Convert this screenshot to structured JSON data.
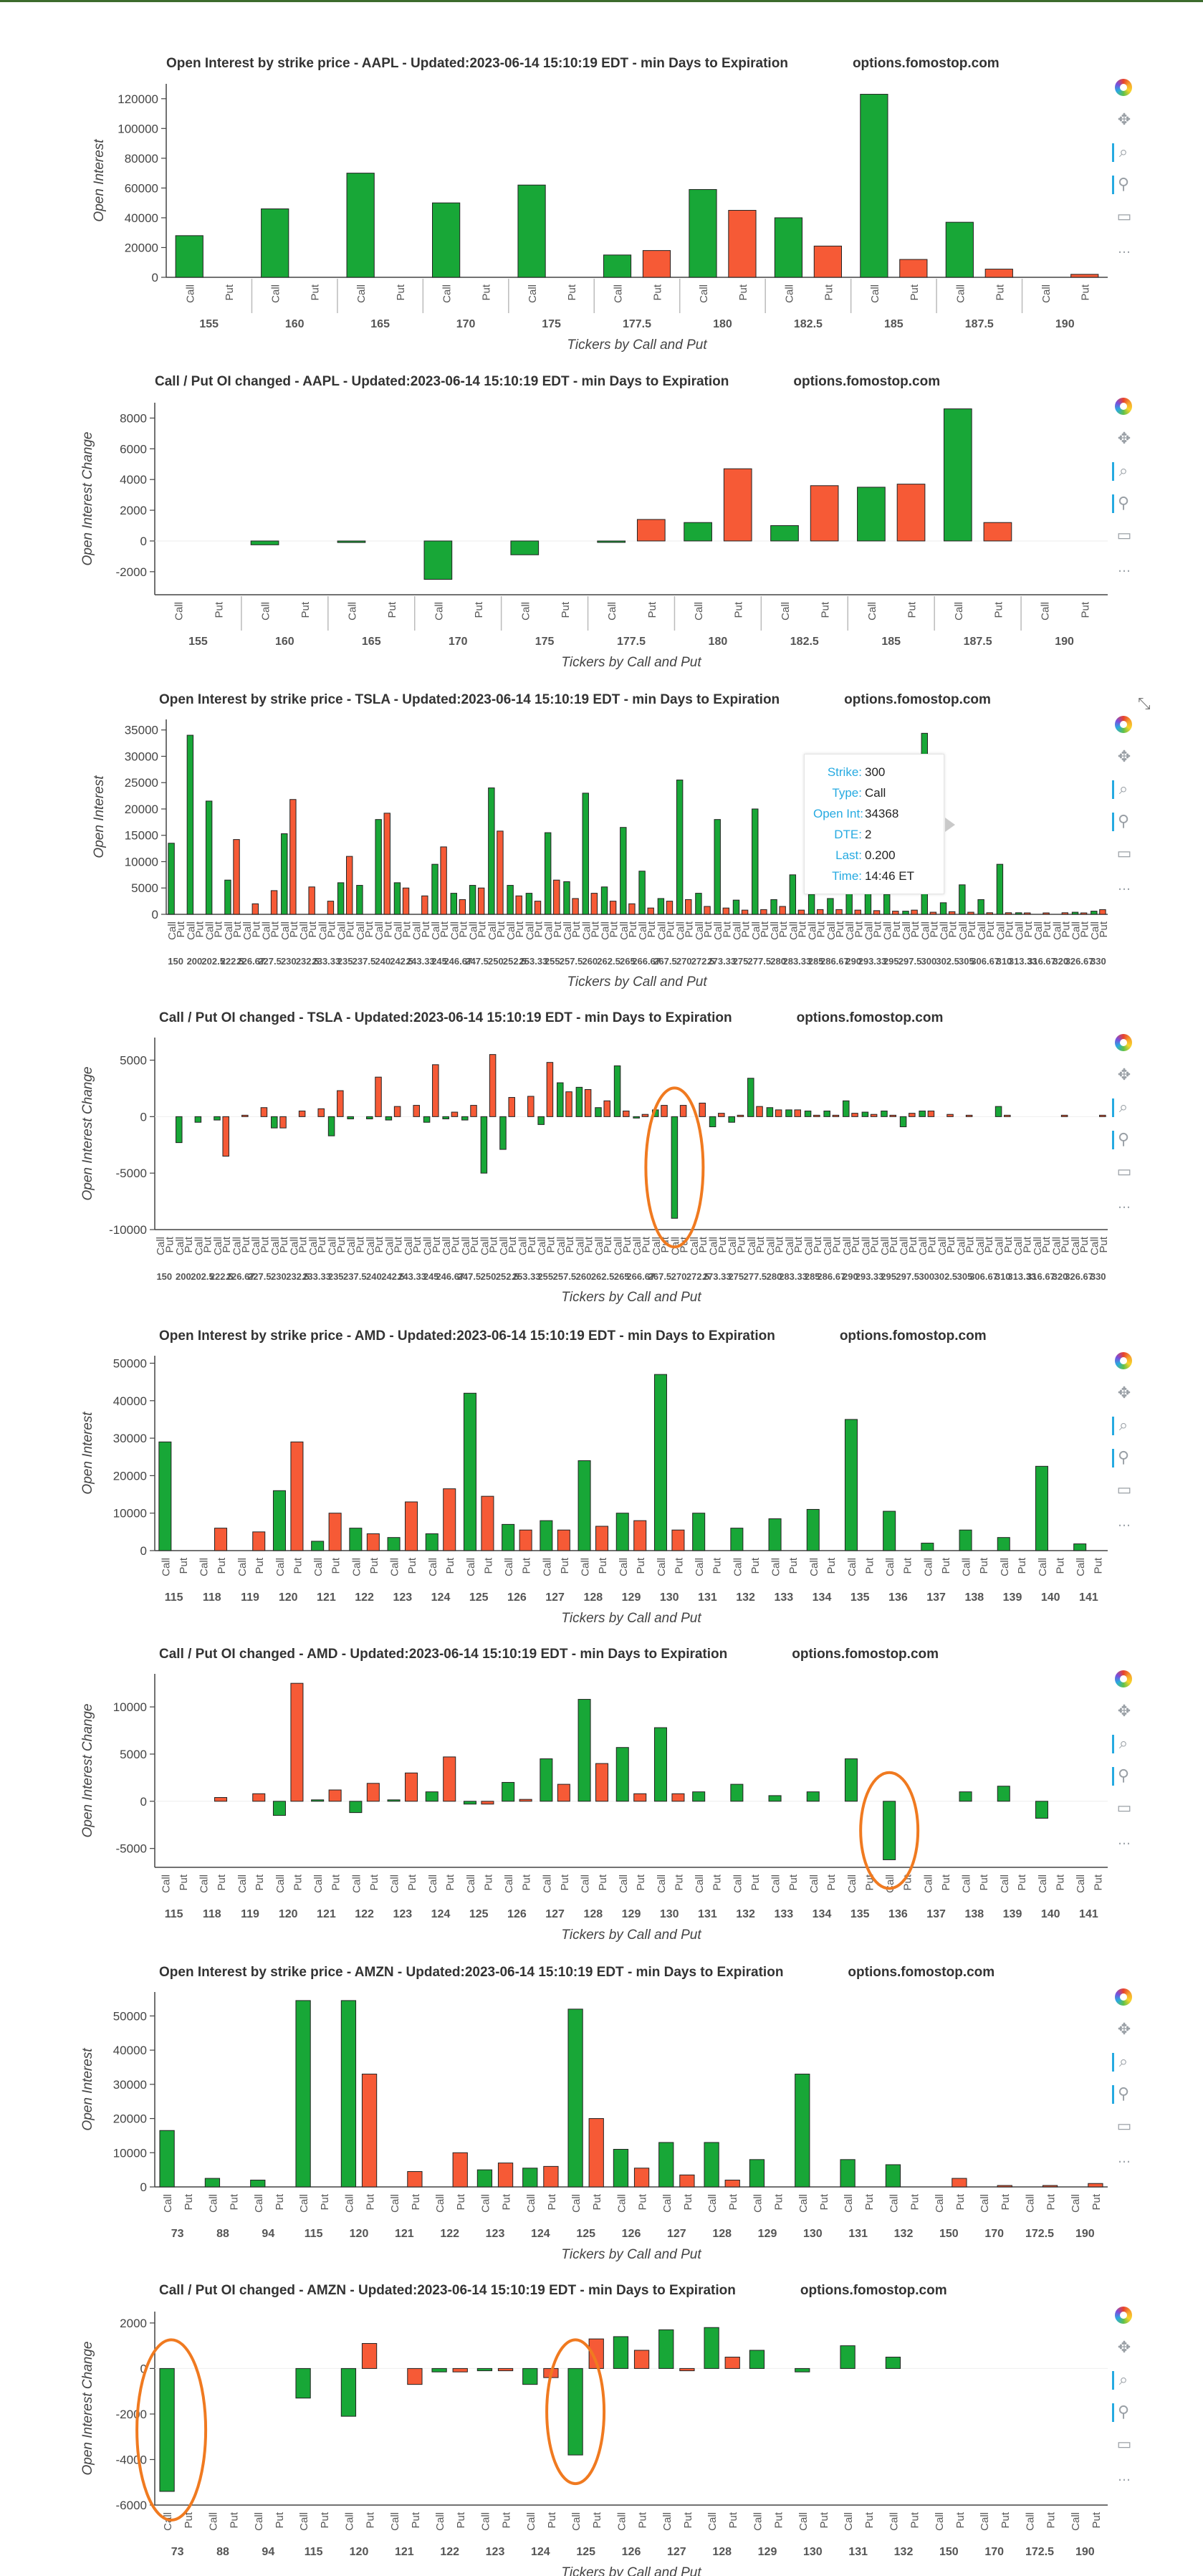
{
  "colors": {
    "call": "#18a737",
    "put": "#f65a36",
    "highlight": "#f07a20",
    "axis": "#444444"
  },
  "toolbar_icons": [
    "bokeh-logo-icon",
    "pan-icon",
    "box-zoom-icon",
    "wheel-zoom-icon",
    "save-icon",
    "more-icon"
  ],
  "more_glyph": "…",
  "tooltip": {
    "rows": [
      {
        "k": "Strike:",
        "v": "300"
      },
      {
        "k": "Type:",
        "v": "Call"
      },
      {
        "k": "Open Int:",
        "v": "34368"
      },
      {
        "k": "DTE:",
        "v": "2"
      },
      {
        "k": "Last:",
        "v": "0.200"
      },
      {
        "k": "Time:",
        "v": "14:46 ET"
      }
    ]
  },
  "chart_data": [
    {
      "type": "bar",
      "title": "Open Interest by strike price - AAPL - Updated:2023-06-14 15:10:19 EDT - min Days to Expiration",
      "site": "options.fomostop.com",
      "xlabel": "Tickers by Call and Put",
      "ylabel": "Open Interest",
      "ylim": [
        0,
        130000
      ],
      "yticks": [
        0,
        20000,
        40000,
        60000,
        80000,
        100000,
        120000
      ],
      "ytick_labels": [
        "0",
        "20000",
        "40000",
        "60000",
        "80000",
        "100000",
        "120000"
      ],
      "groups": [
        "155",
        "160",
        "165",
        "170",
        "175",
        "177.5",
        "180",
        "182.5",
        "185",
        "187.5",
        "190"
      ],
      "sub": [
        "Call",
        "Put"
      ],
      "series": [
        {
          "name": "Call",
          "values": [
            28000,
            46000,
            70000,
            50000,
            62000,
            15000,
            59000,
            40000,
            123000,
            37000,
            0
          ]
        },
        {
          "name": "Put",
          "values": [
            0,
            0,
            0,
            0,
            0,
            18000,
            45000,
            21000,
            12000,
            5500,
            2000
          ]
        }
      ],
      "separators": true
    },
    {
      "type": "bar",
      "title": "Call / Put OI changed - AAPL - Updated:2023-06-14 15:10:19 EDT - min Days to Expiration",
      "site": "options.fomostop.com",
      "xlabel": "Tickers by Call and Put",
      "ylabel": "Open Interest Change",
      "ylim": [
        -3500,
        9000
      ],
      "yticks": [
        -2000,
        0,
        2000,
        4000,
        6000,
        8000
      ],
      "ytick_labels": [
        "-2000",
        "0",
        "2000",
        "4000",
        "6000",
        "8000"
      ],
      "groups": [
        "155",
        "160",
        "165",
        "170",
        "175",
        "177.5",
        "180",
        "182.5",
        "185",
        "187.5",
        "190"
      ],
      "sub": [
        "Call",
        "Put"
      ],
      "series": [
        {
          "name": "Call",
          "values": [
            0,
            -250,
            -100,
            -2500,
            -900,
            -80,
            1200,
            1000,
            3500,
            8600,
            0
          ]
        },
        {
          "name": "Put",
          "values": [
            0,
            0,
            0,
            0,
            0,
            1400,
            4700,
            3600,
            3700,
            1200,
            0
          ]
        }
      ],
      "separators": true
    },
    {
      "type": "bar",
      "title": "Open Interest by strike price - TSLA - Updated:2023-06-14 15:10:19 EDT - min Days to Expiration",
      "site": "options.fomostop.com",
      "xlabel": "Tickers by Call and Put",
      "ylabel": "Open Interest",
      "ylim": [
        0,
        37000
      ],
      "yticks": [
        0,
        5000,
        10000,
        15000,
        20000,
        25000,
        30000,
        35000
      ],
      "ytick_labels": [
        "0",
        "5000",
        "10000",
        "15000",
        "20000",
        "25000",
        "30000",
        "35000"
      ],
      "groups": [
        "150",
        "200",
        "202.5",
        "222.5",
        "226.67",
        "227.5",
        "230",
        "232.5",
        "233.33",
        "235",
        "237.5",
        "240",
        "242.5",
        "243.33",
        "245",
        "246.67",
        "247.5",
        "250",
        "252.5",
        "253.33",
        "255",
        "257.5",
        "260",
        "262.5",
        "265",
        "266.67",
        "267.5",
        "270",
        "272.5",
        "273.33",
        "275",
        "277.5",
        "280",
        "283.33",
        "285",
        "286.67",
        "290",
        "293.33",
        "295",
        "297.5",
        "300",
        "302.5",
        "305",
        "306.67",
        "310",
        "313.33",
        "316.67",
        "320",
        "326.67",
        "330"
      ],
      "sub": [
        "Call",
        "Put"
      ],
      "series": [
        {
          "name": "Call",
          "values": [
            13500,
            34000,
            21500,
            6500,
            0,
            0,
            15300,
            0,
            0,
            6000,
            5500,
            18000,
            6000,
            0,
            9500,
            4000,
            5500,
            24000,
            5500,
            4000,
            15500,
            6200,
            23000,
            5200,
            16500,
            8200,
            3000,
            25500,
            4000,
            18000,
            2700,
            20000,
            2800,
            7500,
            3800,
            3000,
            4000,
            4500,
            3800,
            600,
            34368,
            2200,
            5600,
            2800,
            9500,
            300,
            0,
            0,
            400,
            600
          ]
        },
        {
          "name": "Put",
          "values": [
            0,
            0,
            0,
            14200,
            2000,
            4500,
            21800,
            5200,
            2500,
            11000,
            0,
            19200,
            5000,
            3500,
            12800,
            2800,
            5000,
            15800,
            3500,
            2500,
            6500,
            3000,
            4000,
            2500,
            2000,
            1200,
            2500,
            2800,
            1500,
            1200,
            800,
            900,
            1500,
            800,
            900,
            900,
            800,
            700,
            600,
            800,
            400,
            500,
            400,
            300,
            300,
            200,
            200,
            300,
            200,
            900
          ]
        }
      ],
      "separators": false
    },
    {
      "type": "bar",
      "title": "Call / Put OI changed - TSLA - Updated:2023-06-14 15:10:19 EDT - min Days to Expiration",
      "site": "options.fomostop.com",
      "xlabel": "Tickers by Call and Put",
      "ylabel": "Open Interest Change",
      "ylim": [
        -10000,
        7000
      ],
      "yticks": [
        -10000,
        -5000,
        0,
        5000
      ],
      "ytick_labels": [
        "-10000",
        "-5000",
        "0",
        "5000"
      ],
      "groups": [
        "150",
        "200",
        "202.5",
        "222.5",
        "226.67",
        "227.5",
        "230",
        "232.5",
        "233.33",
        "235",
        "237.5",
        "240",
        "242.5",
        "243.33",
        "245",
        "246.67",
        "247.5",
        "250",
        "252.5",
        "253.33",
        "255",
        "257.5",
        "260",
        "262.5",
        "265",
        "266.67",
        "267.5",
        "270",
        "272.5",
        "273.33",
        "275",
        "277.5",
        "280",
        "283.33",
        "285",
        "286.67",
        "290",
        "293.33",
        "295",
        "297.5",
        "300",
        "302.5",
        "305",
        "306.67",
        "310",
        "313.33",
        "316.67",
        "320",
        "326.67",
        "330"
      ],
      "sub": [
        "Call",
        "Put"
      ],
      "series": [
        {
          "name": "Call",
          "values": [
            0,
            -2300,
            -500,
            -300,
            0,
            0,
            -1000,
            0,
            0,
            -1700,
            -200,
            -200,
            -300,
            0,
            -500,
            -200,
            -300,
            -5000,
            -2900,
            0,
            -700,
            3000,
            2600,
            800,
            4500,
            -100,
            600,
            -9000,
            0,
            -900,
            -500,
            3400,
            800,
            600,
            500,
            500,
            1400,
            400,
            500,
            -900,
            500,
            0,
            0,
            0,
            900,
            0,
            0,
            0,
            0,
            0
          ]
        },
        {
          "name": "Put",
          "values": [
            0,
            0,
            0,
            -3500,
            100,
            800,
            -1000,
            500,
            700,
            2300,
            0,
            3500,
            900,
            1000,
            4600,
            400,
            1000,
            5500,
            1700,
            1800,
            4800,
            2200,
            2400,
            1400,
            500,
            200,
            1000,
            1000,
            1200,
            300,
            100,
            900,
            600,
            600,
            100,
            100,
            300,
            200,
            100,
            300,
            500,
            200,
            100,
            0,
            100,
            0,
            0,
            100,
            0,
            100
          ]
        }
      ],
      "separators": false,
      "highlights": [
        {
          "group": 27
        }
      ]
    },
    {
      "type": "bar",
      "title": "Open Interest by strike price - AMD - Updated:2023-06-14 15:10:19 EDT - min Days to Expiration",
      "site": "options.fomostop.com",
      "xlabel": "Tickers by Call and Put",
      "ylabel": "Open Interest",
      "ylim": [
        0,
        52000
      ],
      "yticks": [
        0,
        10000,
        20000,
        30000,
        40000,
        50000
      ],
      "ytick_labels": [
        "0",
        "10000",
        "20000",
        "30000",
        "40000",
        "50000"
      ],
      "groups": [
        "115",
        "118",
        "119",
        "120",
        "121",
        "122",
        "123",
        "124",
        "125",
        "126",
        "127",
        "128",
        "129",
        "130",
        "131",
        "132",
        "133",
        "134",
        "135",
        "136",
        "137",
        "138",
        "139",
        "140",
        "141"
      ],
      "sub": [
        "Call",
        "Put"
      ],
      "series": [
        {
          "name": "Call",
          "values": [
            29000,
            0,
            0,
            16000,
            2500,
            6000,
            3500,
            4500,
            42000,
            7000,
            8000,
            24000,
            10000,
            47000,
            10000,
            6000,
            8500,
            11000,
            35000,
            10500,
            2000,
            5500,
            3500,
            22500,
            1800
          ]
        },
        {
          "name": "Put",
          "values": [
            0,
            6000,
            5000,
            29000,
            10000,
            4500,
            13000,
            16500,
            14500,
            5500,
            5500,
            6500,
            8000,
            5500,
            0,
            0,
            0,
            0,
            0,
            0,
            0,
            0,
            0,
            0,
            0
          ]
        }
      ],
      "separators": false
    },
    {
      "type": "bar",
      "title": "Call / Put OI changed - AMD - Updated:2023-06-14 15:10:19 EDT - min Days to Expiration",
      "site": "options.fomostop.com",
      "xlabel": "Tickers by Call and Put",
      "ylabel": "Open Interest Change",
      "ylim": [
        -7000,
        13500
      ],
      "yticks": [
        -5000,
        0,
        5000,
        10000
      ],
      "ytick_labels": [
        "-5000",
        "0",
        "5000",
        "10000"
      ],
      "groups": [
        "115",
        "118",
        "119",
        "120",
        "121",
        "122",
        "123",
        "124",
        "125",
        "126",
        "127",
        "128",
        "129",
        "130",
        "131",
        "132",
        "133",
        "134",
        "135",
        "136",
        "137",
        "138",
        "139",
        "140",
        "141"
      ],
      "sub": [
        "Call",
        "Put"
      ],
      "series": [
        {
          "name": "Call",
          "values": [
            0,
            0,
            0,
            -1500,
            100,
            -1200,
            100,
            1000,
            -300,
            2000,
            4500,
            10800,
            5700,
            7800,
            1000,
            1800,
            600,
            1000,
            4500,
            -6200,
            0,
            1000,
            1600,
            -1800,
            0
          ]
        },
        {
          "name": "Put",
          "values": [
            0,
            400,
            800,
            12500,
            1200,
            1900,
            3000,
            4700,
            -300,
            200,
            1800,
            4000,
            800,
            800,
            0,
            0,
            0,
            0,
            0,
            0,
            0,
            0,
            0,
            0,
            0
          ]
        }
      ],
      "separators": false,
      "highlights": [
        {
          "group": 19
        }
      ]
    },
    {
      "type": "bar",
      "title": "Open Interest by strike price - AMZN - Updated:2023-06-14 15:10:19 EDT - min Days to Expiration",
      "site": "options.fomostop.com",
      "xlabel": "Tickers by Call and Put",
      "ylabel": "Open Interest",
      "ylim": [
        0,
        57000
      ],
      "yticks": [
        0,
        10000,
        20000,
        30000,
        40000,
        50000
      ],
      "ytick_labels": [
        "0",
        "10000",
        "20000",
        "30000",
        "40000",
        "50000"
      ],
      "groups": [
        "73",
        "88",
        "94",
        "115",
        "120",
        "121",
        "122",
        "123",
        "124",
        "125",
        "126",
        "127",
        "128",
        "129",
        "130",
        "131",
        "132",
        "150",
        "170",
        "172.5",
        "190"
      ],
      "sub": [
        "Call",
        "Put"
      ],
      "series": [
        {
          "name": "Call",
          "values": [
            16500,
            2500,
            2000,
            54500,
            54500,
            0,
            0,
            5000,
            5500,
            52000,
            11000,
            13000,
            13000,
            8000,
            33000,
            8000,
            6500,
            0,
            0,
            0,
            0
          ]
        },
        {
          "name": "Put",
          "values": [
            0,
            0,
            0,
            0,
            33000,
            4500,
            10000,
            7000,
            6000,
            20000,
            5500,
            3500,
            2000,
            0,
            0,
            0,
            0,
            2500,
            300,
            200,
            1000
          ]
        }
      ],
      "separators": false
    },
    {
      "type": "bar",
      "title": "Call / Put OI changed - AMZN - Updated:2023-06-14 15:10:19 EDT - min Days to Expiration",
      "site": "options.fomostop.com",
      "xlabel": "Tickers by Call and Put",
      "ylabel": "Open Interest Change",
      "ylim": [
        -6000,
        2500
      ],
      "yticks": [
        -6000,
        -4000,
        -2000,
        0,
        2000
      ],
      "ytick_labels": [
        "-6000",
        "-4000",
        "-2000",
        "0",
        "2000"
      ],
      "groups": [
        "73",
        "88",
        "94",
        "115",
        "120",
        "121",
        "122",
        "123",
        "124",
        "125",
        "126",
        "127",
        "128",
        "129",
        "130",
        "131",
        "132",
        "150",
        "170",
        "172.5",
        "190"
      ],
      "sub": [
        "Call",
        "Put"
      ],
      "series": [
        {
          "name": "Call",
          "values": [
            -5400,
            0,
            0,
            -1300,
            -2100,
            0,
            -150,
            -100,
            -700,
            -3800,
            1400,
            1700,
            1800,
            800,
            -150,
            1000,
            500,
            0,
            0,
            0,
            0
          ]
        },
        {
          "name": "Put",
          "values": [
            0,
            0,
            0,
            0,
            1100,
            -700,
            -150,
            -100,
            -400,
            1300,
            800,
            -100,
            500,
            0,
            0,
            0,
            0,
            0,
            0,
            0,
            0
          ]
        }
      ],
      "separators": false,
      "highlights": [
        {
          "group": 0,
          "big": true
        },
        {
          "group": 9
        }
      ]
    }
  ]
}
